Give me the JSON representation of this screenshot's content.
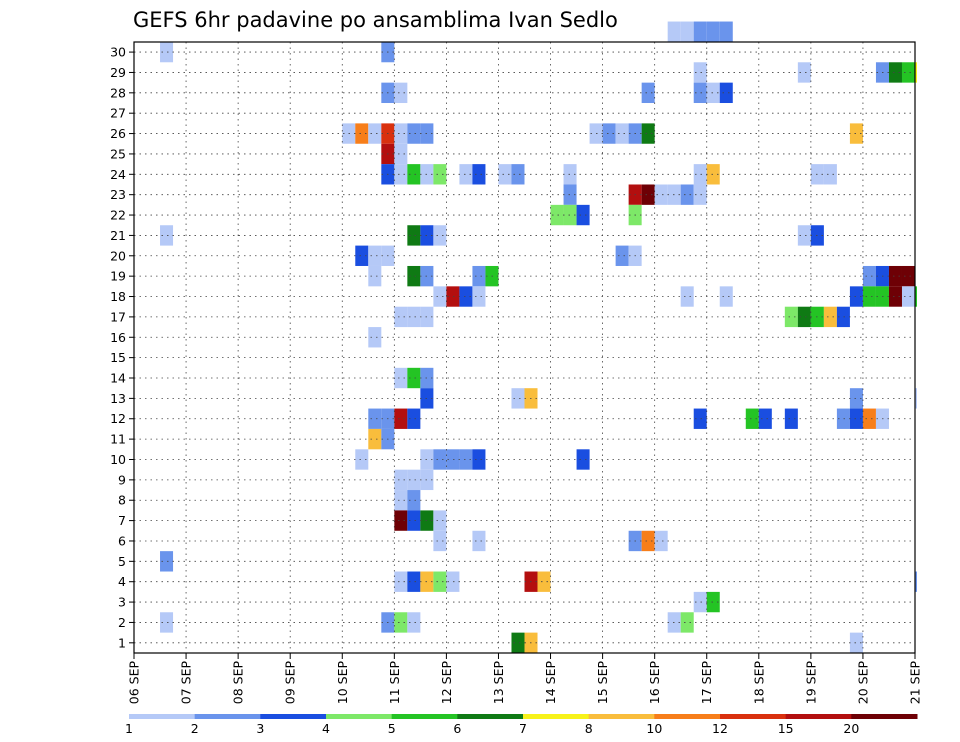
{
  "chart_data": {
    "type": "heatmap",
    "title": "GEFS 6hr padavine po ansamblima Ivan Sedlo",
    "x_tick_labels": [
      "06 SEP",
      "07 SEP",
      "08 SEP",
      "09 SEP",
      "10 SEP",
      "11 SEP",
      "12 SEP",
      "13 SEP",
      "14 SEP",
      "15 SEP",
      "16 SEP",
      "17 SEP",
      "18 SEP",
      "19 SEP",
      "20 SEP",
      "21 SEP"
    ],
    "y_tick_labels": [
      "1",
      "2",
      "3",
      "4",
      "5",
      "6",
      "7",
      "8",
      "9",
      "10",
      "11",
      "12",
      "13",
      "14",
      "15",
      "16",
      "17",
      "18",
      "19",
      "20",
      "21",
      "22",
      "23",
      "24",
      "25",
      "26",
      "27",
      "28",
      "29",
      "30"
    ],
    "xlim_days": [
      0,
      15
    ],
    "ylim_members": [
      0,
      30
    ],
    "step_days": 0.25,
    "grid": "dotted",
    "legend": {
      "placement": "bottom",
      "levels": [
        "1",
        "2",
        "3",
        "4",
        "5",
        "6",
        "7",
        "8",
        "10",
        "12",
        "15",
        "20"
      ],
      "colors": [
        "#b5c9f7",
        "#6a94ec",
        "#1a4ee0",
        "#7de868",
        "#24c424",
        "#0f7a14",
        "#f7f21a",
        "#f9bd3c",
        "#f77e1a",
        "#d9300e",
        "#b30f0f",
        "#6e0005"
      ]
    },
    "cells": [
      [
        30,
        10.25,
        1
      ],
      [
        30,
        10.5,
        1
      ],
      [
        30,
        10.75,
        2
      ],
      [
        30,
        11.0,
        2
      ],
      [
        30,
        11.25,
        2
      ],
      [
        29,
        0.5,
        1
      ],
      [
        29,
        4.75,
        2
      ],
      [
        28,
        10.75,
        1
      ],
      [
        28,
        12.75,
        1
      ],
      [
        28,
        14.25,
        2
      ],
      [
        28,
        14.5,
        6
      ],
      [
        28,
        14.75,
        5
      ],
      [
        28,
        15.0,
        7
      ],
      [
        27,
        4.75,
        2
      ],
      [
        27,
        5.0,
        1
      ],
      [
        27,
        9.75,
        2
      ],
      [
        27,
        10.75,
        2
      ],
      [
        27,
        11.0,
        1
      ],
      [
        27,
        11.25,
        3
      ],
      [
        25,
        4.0,
        1
      ],
      [
        25,
        4.25,
        10
      ],
      [
        25,
        4.5,
        9
      ],
      [
        25,
        4.75,
        12
      ],
      [
        25,
        5.0,
        1
      ],
      [
        25,
        5.25,
        2
      ],
      [
        25,
        5.5,
        2
      ],
      [
        25,
        8.75,
        1
      ],
      [
        25,
        9.0,
        2
      ],
      [
        25,
        9.25,
        1
      ],
      [
        25,
        9.5,
        2
      ],
      [
        25,
        9.75,
        6
      ],
      [
        25,
        13.75,
        8
      ],
      [
        24,
        4.75,
        15
      ],
      [
        24,
        5.0,
        1
      ],
      [
        23,
        4.75,
        3
      ],
      [
        23,
        5.0,
        1
      ],
      [
        23,
        5.25,
        5
      ],
      [
        23,
        5.5,
        9
      ],
      [
        23,
        5.75,
        4
      ],
      [
        23,
        6.25,
        1
      ],
      [
        23,
        6.5,
        3
      ],
      [
        23,
        7.0,
        1
      ],
      [
        23,
        7.25,
        2
      ],
      [
        23,
        8.25,
        1
      ],
      [
        23,
        10.75,
        9
      ],
      [
        23,
        11.0,
        8
      ],
      [
        23,
        13.0,
        1
      ],
      [
        23,
        13.25,
        1
      ],
      [
        22,
        8.25,
        2
      ],
      [
        22,
        9.5,
        15
      ],
      [
        22,
        9.75,
        20
      ],
      [
        22,
        10.0,
        1
      ],
      [
        22,
        10.25,
        1
      ],
      [
        22,
        10.5,
        2
      ],
      [
        22,
        10.75,
        1
      ],
      [
        21,
        8.0,
        4
      ],
      [
        21,
        8.25,
        4
      ],
      [
        21,
        8.5,
        3
      ],
      [
        21,
        9.5,
        4
      ],
      [
        20,
        0.5,
        1
      ],
      [
        20,
        5.25,
        6
      ],
      [
        20,
        5.5,
        3
      ],
      [
        20,
        5.75,
        1
      ],
      [
        20,
        12.75,
        1
      ],
      [
        20,
        13.0,
        3
      ],
      [
        19,
        4.25,
        3
      ],
      [
        19,
        4.5,
        1
      ],
      [
        19,
        4.75,
        1
      ],
      [
        19,
        9.25,
        2
      ],
      [
        19,
        9.5,
        1
      ],
      [
        18,
        4.5,
        1
      ],
      [
        18,
        5.25,
        6
      ],
      [
        18,
        5.5,
        2
      ],
      [
        18,
        6.5,
        2
      ],
      [
        18,
        6.75,
        5
      ],
      [
        18,
        14.0,
        2
      ],
      [
        18,
        14.25,
        3
      ],
      [
        18,
        14.5,
        20
      ],
      [
        18,
        14.75,
        20
      ],
      [
        17,
        5.75,
        1
      ],
      [
        17,
        6.0,
        15
      ],
      [
        17,
        6.25,
        3
      ],
      [
        17,
        6.5,
        1
      ],
      [
        17,
        10.5,
        1
      ],
      [
        17,
        11.25,
        1
      ],
      [
        17,
        13.75,
        3
      ],
      [
        17,
        14.0,
        5
      ],
      [
        17,
        14.25,
        5
      ],
      [
        17,
        14.5,
        20
      ],
      [
        17,
        14.75,
        9
      ],
      [
        17,
        15.0,
        5
      ],
      [
        16,
        5.0,
        1
      ],
      [
        16,
        5.25,
        1
      ],
      [
        16,
        5.5,
        1
      ],
      [
        16,
        12.5,
        4
      ],
      [
        16,
        12.75,
        6
      ],
      [
        16,
        13.0,
        5
      ],
      [
        16,
        13.25,
        8
      ],
      [
        16,
        13.5,
        3
      ],
      [
        15,
        4.5,
        1
      ],
      [
        13,
        5.0,
        1
      ],
      [
        13,
        5.25,
        5
      ],
      [
        13,
        5.5,
        2
      ],
      [
        12,
        5.5,
        3
      ],
      [
        12,
        7.25,
        1
      ],
      [
        12,
        7.5,
        8
      ],
      [
        12,
        13.75,
        2
      ],
      [
        12,
        15.0,
        1
      ],
      [
        11,
        4.5,
        2
      ],
      [
        11,
        4.75,
        2
      ],
      [
        11,
        5.0,
        15
      ],
      [
        11,
        5.25,
        3
      ],
      [
        11,
        10.75,
        3
      ],
      [
        11,
        11.75,
        5
      ],
      [
        11,
        12.0,
        3
      ],
      [
        11,
        12.5,
        3
      ],
      [
        11,
        13.5,
        2
      ],
      [
        11,
        13.75,
        3
      ],
      [
        11,
        14.0,
        10
      ],
      [
        11,
        14.25,
        1
      ],
      [
        10,
        4.5,
        8
      ],
      [
        10,
        4.75,
        2
      ],
      [
        9,
        4.25,
        1
      ],
      [
        9,
        5.5,
        1
      ],
      [
        9,
        5.75,
        2
      ],
      [
        9,
        6.0,
        2
      ],
      [
        9,
        6.25,
        2
      ],
      [
        9,
        6.5,
        3
      ],
      [
        9,
        8.5,
        3
      ],
      [
        8,
        5.0,
        1
      ],
      [
        8,
        5.25,
        1
      ],
      [
        8,
        5.5,
        1
      ],
      [
        7,
        5.0,
        1
      ],
      [
        7,
        5.25,
        2
      ],
      [
        6,
        5.0,
        20
      ],
      [
        6,
        5.25,
        3
      ],
      [
        6,
        5.5,
        6
      ],
      [
        6,
        5.75,
        1
      ],
      [
        5,
        5.75,
        1
      ],
      [
        5,
        6.5,
        1
      ],
      [
        5,
        9.5,
        2
      ],
      [
        5,
        9.75,
        10
      ],
      [
        5,
        10.0,
        1
      ],
      [
        4,
        0.5,
        2
      ],
      [
        3,
        5.0,
        1
      ],
      [
        3,
        5.25,
        3
      ],
      [
        3,
        5.5,
        8
      ],
      [
        3,
        5.75,
        4
      ],
      [
        3,
        6.0,
        1
      ],
      [
        3,
        7.5,
        15
      ],
      [
        3,
        7.75,
        8
      ],
      [
        3,
        15.0,
        2
      ],
      [
        2,
        10.75,
        1
      ],
      [
        2,
        11.0,
        5
      ],
      [
        1,
        0.5,
        1
      ],
      [
        1,
        4.75,
        2
      ],
      [
        1,
        5.0,
        4
      ],
      [
        1,
        5.25,
        1
      ],
      [
        1,
        10.25,
        1
      ],
      [
        1,
        10.5,
        4
      ],
      [
        0,
        7.25,
        6
      ],
      [
        0,
        7.5,
        8
      ],
      [
        0,
        13.75,
        1
      ]
    ]
  }
}
